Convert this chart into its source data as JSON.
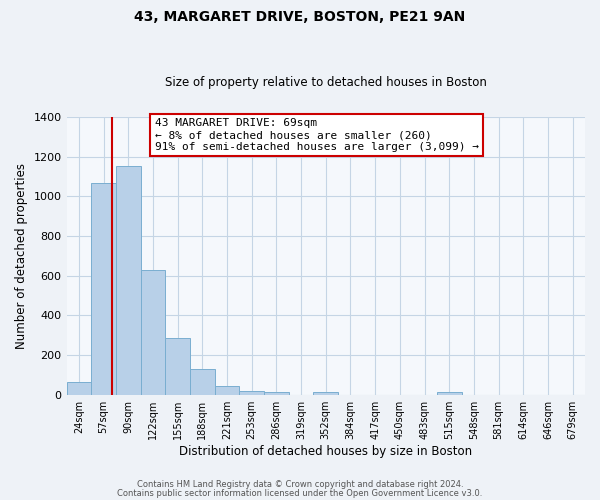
{
  "title": "43, MARGARET DRIVE, BOSTON, PE21 9AN",
  "subtitle": "Size of property relative to detached houses in Boston",
  "xlabel": "Distribution of detached houses by size in Boston",
  "ylabel": "Number of detached properties",
  "bar_labels": [
    "24sqm",
    "57sqm",
    "90sqm",
    "122sqm",
    "155sqm",
    "188sqm",
    "221sqm",
    "253sqm",
    "286sqm",
    "319sqm",
    "352sqm",
    "384sqm",
    "417sqm",
    "450sqm",
    "483sqm",
    "515sqm",
    "548sqm",
    "581sqm",
    "614sqm",
    "646sqm",
    "679sqm"
  ],
  "bar_values": [
    65,
    1065,
    1155,
    630,
    285,
    130,
    45,
    20,
    15,
    0,
    15,
    0,
    0,
    0,
    0,
    15,
    0,
    0,
    0,
    0,
    0
  ],
  "bar_color": "#b8d0e8",
  "bar_edge_color": "#7aaed0",
  "vline_color": "#cc0000",
  "vline_x": 1.35,
  "ylim": [
    0,
    1400
  ],
  "yticks": [
    0,
    200,
    400,
    600,
    800,
    1000,
    1200,
    1400
  ],
  "annotation_title": "43 MARGARET DRIVE: 69sqm",
  "annotation_line1": "← 8% of detached houses are smaller (260)",
  "annotation_line2": "91% of semi-detached houses are larger (3,099) →",
  "footer1": "Contains HM Land Registry data © Crown copyright and database right 2024.",
  "footer2": "Contains public sector information licensed under the Open Government Licence v3.0.",
  "bg_color": "#eef2f7",
  "plot_bg_color": "#f5f8fc",
  "grid_color": "#c5d5e5"
}
